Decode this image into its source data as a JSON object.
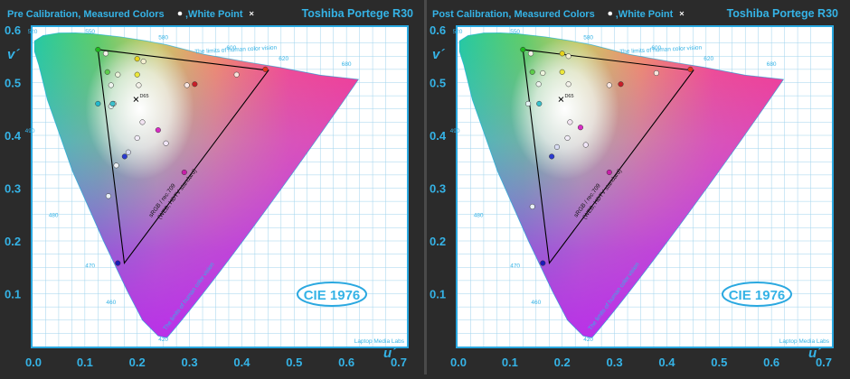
{
  "panels": [
    {
      "title": "Pre Calibration, Measured Colors",
      "white_point_label": ",White Point",
      "product": "Toshiba Portege R30",
      "badge": "CIE 1976",
      "watermark": "Laptop Media Labs"
    },
    {
      "title": "Post Calibration, Measured Colors",
      "white_point_label": ",White Point",
      "product": "Toshiba Portege R30",
      "badge": "CIE 1976",
      "watermark": "Laptop Media Labs"
    }
  ],
  "colors": {
    "background": "#2b2b2b",
    "frame": "#2aa8e0",
    "plot_bg": "#ffffff",
    "text_accent": "#35b3e6",
    "gamut_line": "#000000"
  },
  "chart_data": [
    {
      "type": "scatter",
      "title": "Pre Calibration, Measured Colors",
      "xlabel": "u´",
      "ylabel": "v´",
      "xlim": [
        0.0,
        0.7
      ],
      "ylim": [
        0.0,
        0.6
      ],
      "x_ticks": [
        "0.0",
        "0.1",
        "0.2",
        "0.3",
        "0.4",
        "0.5",
        "0.6",
        "0.7"
      ],
      "y_ticks": [
        "0.1",
        "0.2",
        "0.3",
        "0.4",
        "0.5",
        "0.6"
      ],
      "grid": true,
      "wavelength_labels": [
        {
          "label": "420",
          "u": 0.25,
          "v": 0.01
        },
        {
          "label": "460",
          "u": 0.15,
          "v": 0.08
        },
        {
          "label": "470",
          "u": 0.11,
          "v": 0.15
        },
        {
          "label": "480",
          "u": 0.04,
          "v": 0.245
        },
        {
          "label": "490",
          "u": -0.005,
          "v": 0.405
        },
        {
          "label": "520",
          "u": 0.0,
          "v": 0.593
        },
        {
          "label": "550",
          "u": 0.11,
          "v": 0.593
        },
        {
          "label": "580",
          "u": 0.25,
          "v": 0.582
        },
        {
          "label": "600",
          "u": 0.38,
          "v": 0.562
        },
        {
          "label": "620",
          "u": 0.48,
          "v": 0.542
        },
        {
          "label": "680",
          "u": 0.6,
          "v": 0.532
        }
      ],
      "reference_triangle": {
        "label": "sRGB / rec.709",
        "sublabel": "(WEB, HDTV standard)",
        "points": [
          [
            0.4507,
            0.5229
          ],
          [
            0.125,
            0.5625
          ],
          [
            0.1754,
            0.1579
          ]
        ]
      },
      "locus_label": "The limits of human color vision",
      "white_point": {
        "label": "D65",
        "u": 0.1978,
        "v": 0.4683
      },
      "measured_points": [
        {
          "u": 0.125,
          "v": 0.5625,
          "color": "#1db81d"
        },
        {
          "u": 0.14,
          "v": 0.555,
          "color": "#f2f2e8"
        },
        {
          "u": 0.2,
          "v": 0.545,
          "color": "#e6d21a"
        },
        {
          "u": 0.212,
          "v": 0.54,
          "color": "#f4f0d0"
        },
        {
          "u": 0.143,
          "v": 0.52,
          "color": "#5ccc4a"
        },
        {
          "u": 0.163,
          "v": 0.515,
          "color": "#ecf4dc"
        },
        {
          "u": 0.2,
          "v": 0.515,
          "color": "#ece83a"
        },
        {
          "u": 0.39,
          "v": 0.515,
          "color": "#fae4dc"
        },
        {
          "u": 0.445,
          "v": 0.525,
          "color": "#e4341c"
        },
        {
          "u": 0.15,
          "v": 0.495,
          "color": "#eef4ee"
        },
        {
          "u": 0.203,
          "v": 0.495,
          "color": "#f4f2ea"
        },
        {
          "u": 0.295,
          "v": 0.495,
          "color": "#fbe8e4"
        },
        {
          "u": 0.31,
          "v": 0.497,
          "color": "#c81e28"
        },
        {
          "u": 0.125,
          "v": 0.46,
          "color": "#22b8cc"
        },
        {
          "u": 0.155,
          "v": 0.46,
          "color": "#e4f4f4"
        },
        {
          "u": 0.15,
          "v": 0.455,
          "color": "#e2f2f0"
        },
        {
          "u": 0.153,
          "v": 0.46,
          "color": "#3ac0cc"
        },
        {
          "u": 0.21,
          "v": 0.425,
          "color": "#f2e4f2"
        },
        {
          "u": 0.24,
          "v": 0.41,
          "color": "#d82cc4"
        },
        {
          "u": 0.2,
          "v": 0.395,
          "color": "#f2ecf8"
        },
        {
          "u": 0.255,
          "v": 0.385,
          "color": "#f2e6f8"
        },
        {
          "u": 0.183,
          "v": 0.368,
          "color": "#d8dcf4"
        },
        {
          "u": 0.176,
          "v": 0.36,
          "color": "#2a3ad0"
        },
        {
          "u": 0.16,
          "v": 0.343,
          "color": "#ecf0f4"
        },
        {
          "u": 0.29,
          "v": 0.33,
          "color": "#c81ea8"
        },
        {
          "u": 0.145,
          "v": 0.285,
          "color": "#e8f0f8"
        },
        {
          "u": 0.163,
          "v": 0.158,
          "color": "#1a1ab8"
        }
      ]
    },
    {
      "type": "scatter",
      "title": "Post Calibration, Measured Colors",
      "xlabel": "u´",
      "ylabel": "v´",
      "xlim": [
        0.0,
        0.7
      ],
      "ylim": [
        0.0,
        0.6
      ],
      "x_ticks": [
        "0.0",
        "0.1",
        "0.2",
        "0.3",
        "0.4",
        "0.5",
        "0.6",
        "0.7"
      ],
      "y_ticks": [
        "0.1",
        "0.2",
        "0.3",
        "0.4",
        "0.5",
        "0.6"
      ],
      "grid": true,
      "wavelength_labels": [
        {
          "label": "420",
          "u": 0.25,
          "v": 0.01
        },
        {
          "label": "460",
          "u": 0.15,
          "v": 0.08
        },
        {
          "label": "470",
          "u": 0.11,
          "v": 0.15
        },
        {
          "label": "480",
          "u": 0.04,
          "v": 0.245
        },
        {
          "label": "490",
          "u": -0.005,
          "v": 0.405
        },
        {
          "label": "520",
          "u": 0.0,
          "v": 0.593
        },
        {
          "label": "550",
          "u": 0.11,
          "v": 0.593
        },
        {
          "label": "580",
          "u": 0.25,
          "v": 0.582
        },
        {
          "label": "600",
          "u": 0.38,
          "v": 0.562
        },
        {
          "label": "620",
          "u": 0.48,
          "v": 0.542
        },
        {
          "label": "680",
          "u": 0.6,
          "v": 0.532
        }
      ],
      "reference_triangle": {
        "label": "sRGB / rec.709",
        "sublabel": "(WEB, HDTV standard)",
        "points": [
          [
            0.4507,
            0.5229
          ],
          [
            0.125,
            0.5625
          ],
          [
            0.1754,
            0.1579
          ]
        ]
      },
      "locus_label": "The limits of human color vision",
      "white_point": {
        "label": "D65",
        "u": 0.1978,
        "v": 0.4683
      },
      "measured_points": [
        {
          "u": 0.125,
          "v": 0.5625,
          "color": "#1db81d"
        },
        {
          "u": 0.14,
          "v": 0.555,
          "color": "#f2f2e8"
        },
        {
          "u": 0.2,
          "v": 0.555,
          "color": "#e6d21a"
        },
        {
          "u": 0.212,
          "v": 0.55,
          "color": "#f4f0d0"
        },
        {
          "u": 0.143,
          "v": 0.52,
          "color": "#5ccc4a"
        },
        {
          "u": 0.163,
          "v": 0.518,
          "color": "#ecf4dc"
        },
        {
          "u": 0.2,
          "v": 0.52,
          "color": "#ece83a"
        },
        {
          "u": 0.38,
          "v": 0.518,
          "color": "#fae4dc"
        },
        {
          "u": 0.445,
          "v": 0.525,
          "color": "#e4341c"
        },
        {
          "u": 0.155,
          "v": 0.497,
          "color": "#eef4ee"
        },
        {
          "u": 0.212,
          "v": 0.497,
          "color": "#f4f2ea"
        },
        {
          "u": 0.29,
          "v": 0.495,
          "color": "#fbe8e4"
        },
        {
          "u": 0.312,
          "v": 0.497,
          "color": "#c81e28"
        },
        {
          "u": 0.135,
          "v": 0.46,
          "color": "#e4f4f4"
        },
        {
          "u": 0.156,
          "v": 0.46,
          "color": "#3ac0cc"
        },
        {
          "u": 0.215,
          "v": 0.425,
          "color": "#f2e4f2"
        },
        {
          "u": 0.235,
          "v": 0.415,
          "color": "#d82cc4"
        },
        {
          "u": 0.21,
          "v": 0.395,
          "color": "#f2ecf8"
        },
        {
          "u": 0.245,
          "v": 0.382,
          "color": "#f2e6f8"
        },
        {
          "u": 0.19,
          "v": 0.378,
          "color": "#d8dcf4"
        },
        {
          "u": 0.18,
          "v": 0.36,
          "color": "#2a3ad0"
        },
        {
          "u": 0.29,
          "v": 0.33,
          "color": "#c81ea8"
        },
        {
          "u": 0.143,
          "v": 0.265,
          "color": "#e8f0f8"
        },
        {
          "u": 0.163,
          "v": 0.158,
          "color": "#1a1ab8"
        }
      ]
    }
  ]
}
